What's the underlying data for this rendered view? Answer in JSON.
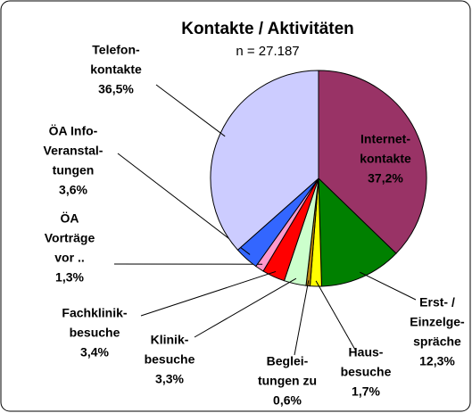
{
  "chart_data": {
    "type": "pie",
    "title": "Kontakte / Aktivitäten",
    "subtitle": "n = 27.187",
    "categories": [
      [
        "Internet-",
        "kontakte"
      ],
      [
        "Erst- /",
        "Einzelge-",
        "spräche"
      ],
      [
        "Haus-",
        "besuche"
      ],
      [
        "Beglei-",
        "tungen zu"
      ],
      [
        "Klinik-",
        "besuche"
      ],
      [
        "Fachklinik-",
        "besuche"
      ],
      [
        "ÖA",
        "Vorträge",
        "vor .."
      ],
      [
        "ÖA Info-",
        "Veranstal-",
        "tungen"
      ],
      [
        "Telefon-",
        "kontakte"
      ]
    ],
    "values": [
      37.2,
      12.3,
      1.7,
      0.6,
      3.3,
      3.4,
      1.3,
      3.6,
      36.5
    ],
    "value_labels": [
      "37,2%",
      "12,3%",
      "1,7%",
      "0,6%",
      "3,3%",
      "3,4%",
      "1,3%",
      "3,6%",
      "36,5%"
    ],
    "colors": [
      "#993366",
      "#008000",
      "#ffff00",
      "#b8860b",
      "#ccffcc",
      "#ff0000",
      "#ff99cc",
      "#3366ff",
      "#ccccff"
    ]
  }
}
